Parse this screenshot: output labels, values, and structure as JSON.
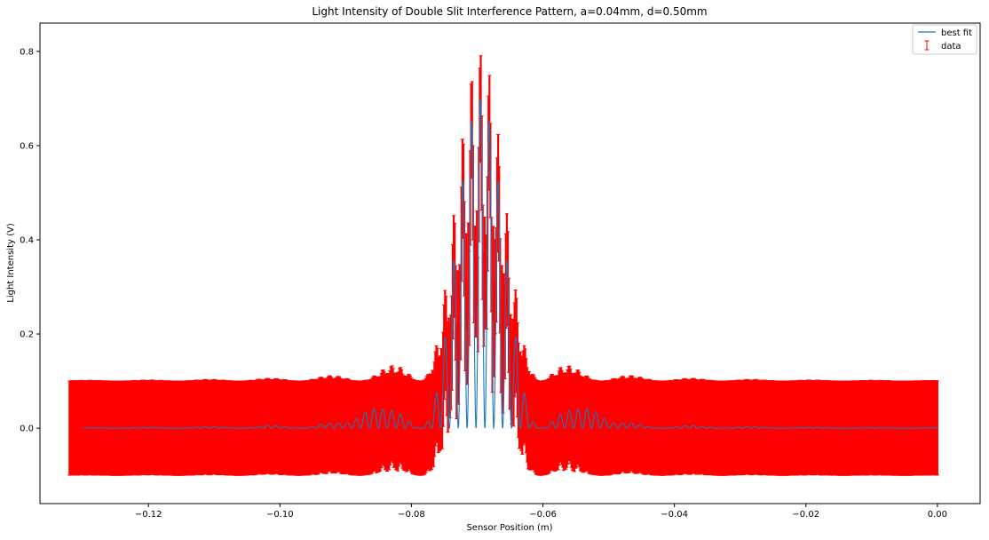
{
  "chart_data": {
    "type": "line",
    "title": "Light Intensity of Double Slit Interference Pattern, a=0.04mm, d=0.50mm",
    "xlabel": "Sensor Position (m)",
    "ylabel": "Light Intensity (V)",
    "xlim": [
      -0.1365,
      0.0065
    ],
    "ylim": [
      -0.16,
      0.86
    ],
    "x_ticks": [
      -0.12,
      -0.1,
      -0.08,
      -0.06,
      -0.04,
      -0.02,
      0.0
    ],
    "x_tick_labels": [
      "−0.12",
      "−0.10",
      "−0.08",
      "−0.06",
      "−0.04",
      "−0.02",
      "0.00"
    ],
    "y_ticks": [
      0.0,
      0.2,
      0.4,
      0.6,
      0.8
    ],
    "y_tick_labels": [
      "0.0",
      "0.2",
      "0.4",
      "0.6",
      "0.8"
    ],
    "grid": false,
    "legend": {
      "placement": "top-right",
      "entries": [
        "best fit",
        "data"
      ]
    },
    "series": [
      {
        "name": "best fit",
        "kind": "line",
        "color": "#1f77b4",
        "x_range": [
          -0.13,
          0.0
        ],
        "peak_x": -0.0695,
        "peak_value": 0.7,
        "fringe_spacing": 0.00135,
        "central_envelope_half_width": 0.0092,
        "side_lobe_peak_value": 0.035,
        "side_lobe_centers": [
          -0.0865,
          -0.0525
        ]
      },
      {
        "name": "data",
        "kind": "errorbar",
        "color": "#ff0000",
        "x_range": [
          -0.132,
          0.0
        ],
        "error": 0.1,
        "outer_envelope_max": 0.81,
        "baseline": 0.0
      }
    ]
  }
}
